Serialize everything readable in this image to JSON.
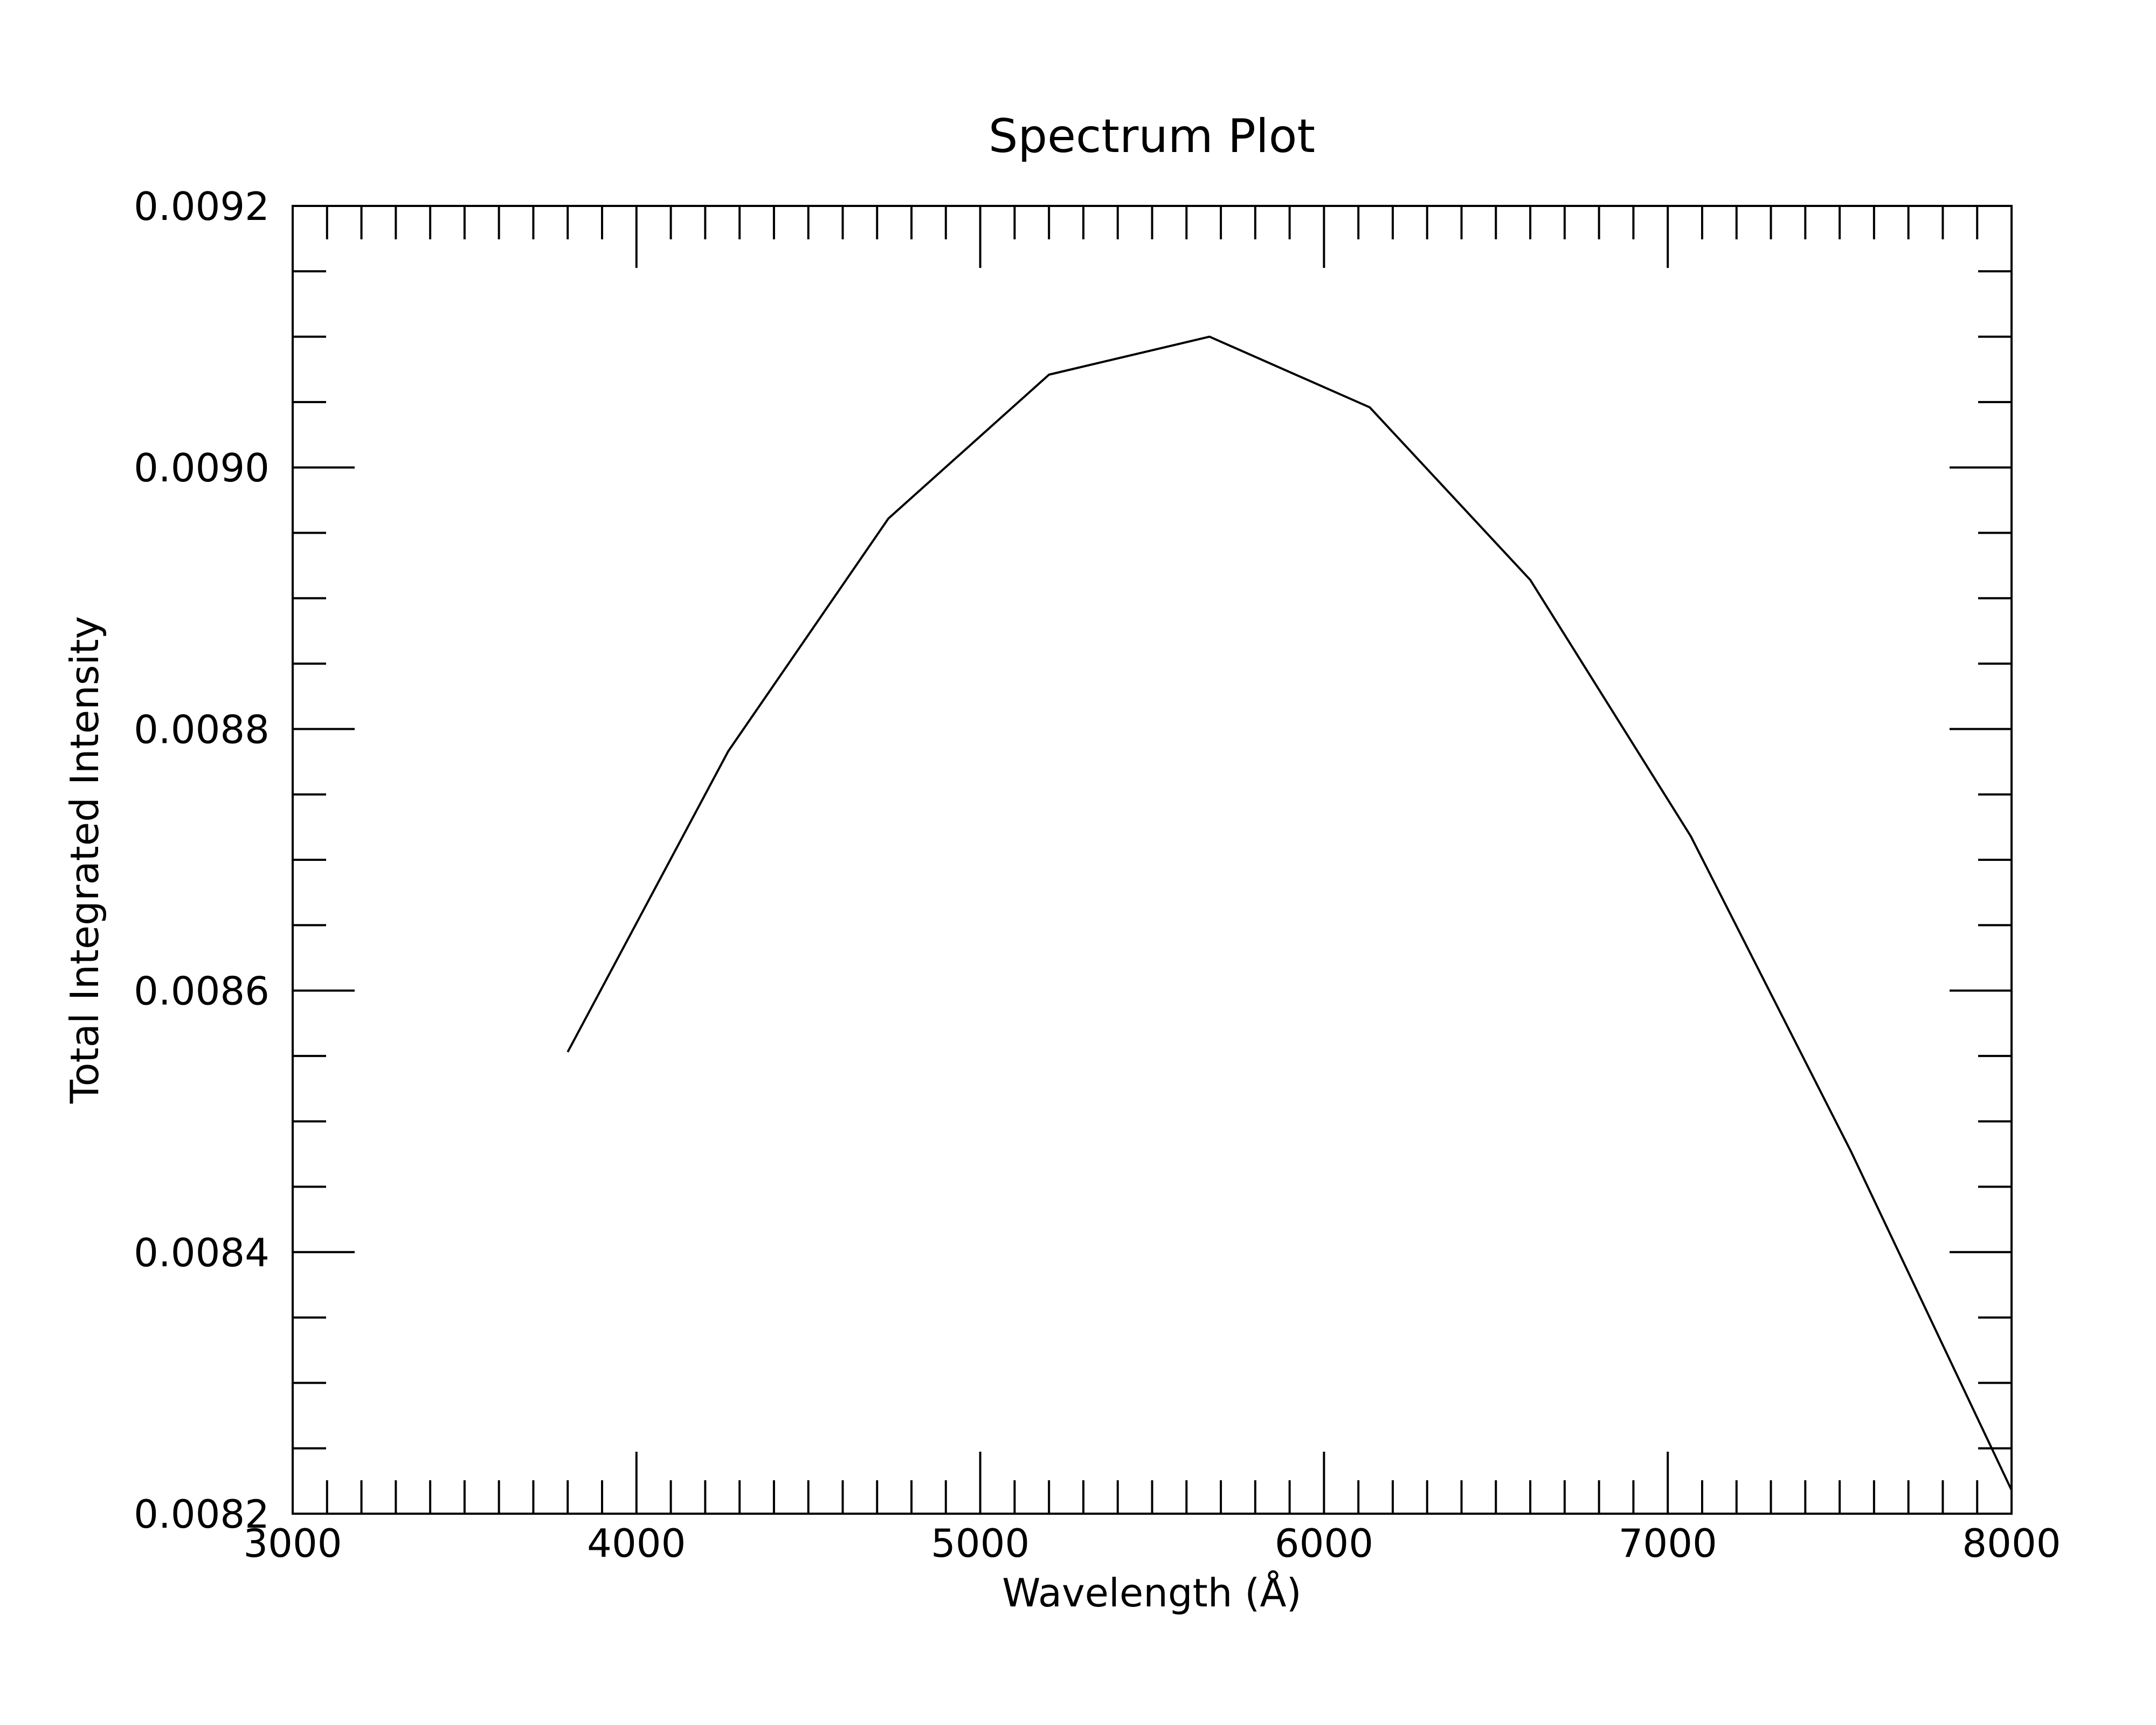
{
  "chart_data": {
    "type": "line",
    "title": "Spectrum Plot",
    "xlabel": "Wavelength (Å)",
    "ylabel": "Total Integrated Intensity",
    "xlim": [
      3000,
      8000
    ],
    "ylim": [
      0.0082,
      0.0092
    ],
    "x_ticks": [
      3000,
      4000,
      5000,
      6000,
      7000,
      8000
    ],
    "x_tick_labels": [
      "3000",
      "4000",
      "5000",
      "6000",
      "7000",
      "8000"
    ],
    "y_ticks": [
      0.0082,
      0.0084,
      0.0086,
      0.0088,
      0.009,
      0.0092
    ],
    "y_tick_labels": [
      "0.0082",
      "0.0084",
      "0.0086",
      "0.0088",
      "0.0090",
      "0.0092"
    ],
    "x_minor_step": 100,
    "y_minor_step": 5e-05,
    "grid": false,
    "legend": "none",
    "line_color": "#000000",
    "series": [
      {
        "x": [
          3800,
          4267,
          4733,
          5200,
          5667,
          6133,
          6600,
          7067,
          7533,
          8000
        ],
        "y": [
          0.008553,
          0.008783,
          0.008961,
          0.009071,
          0.0091,
          0.009046,
          0.008914,
          0.008718,
          0.008477,
          0.008218
        ]
      }
    ]
  }
}
